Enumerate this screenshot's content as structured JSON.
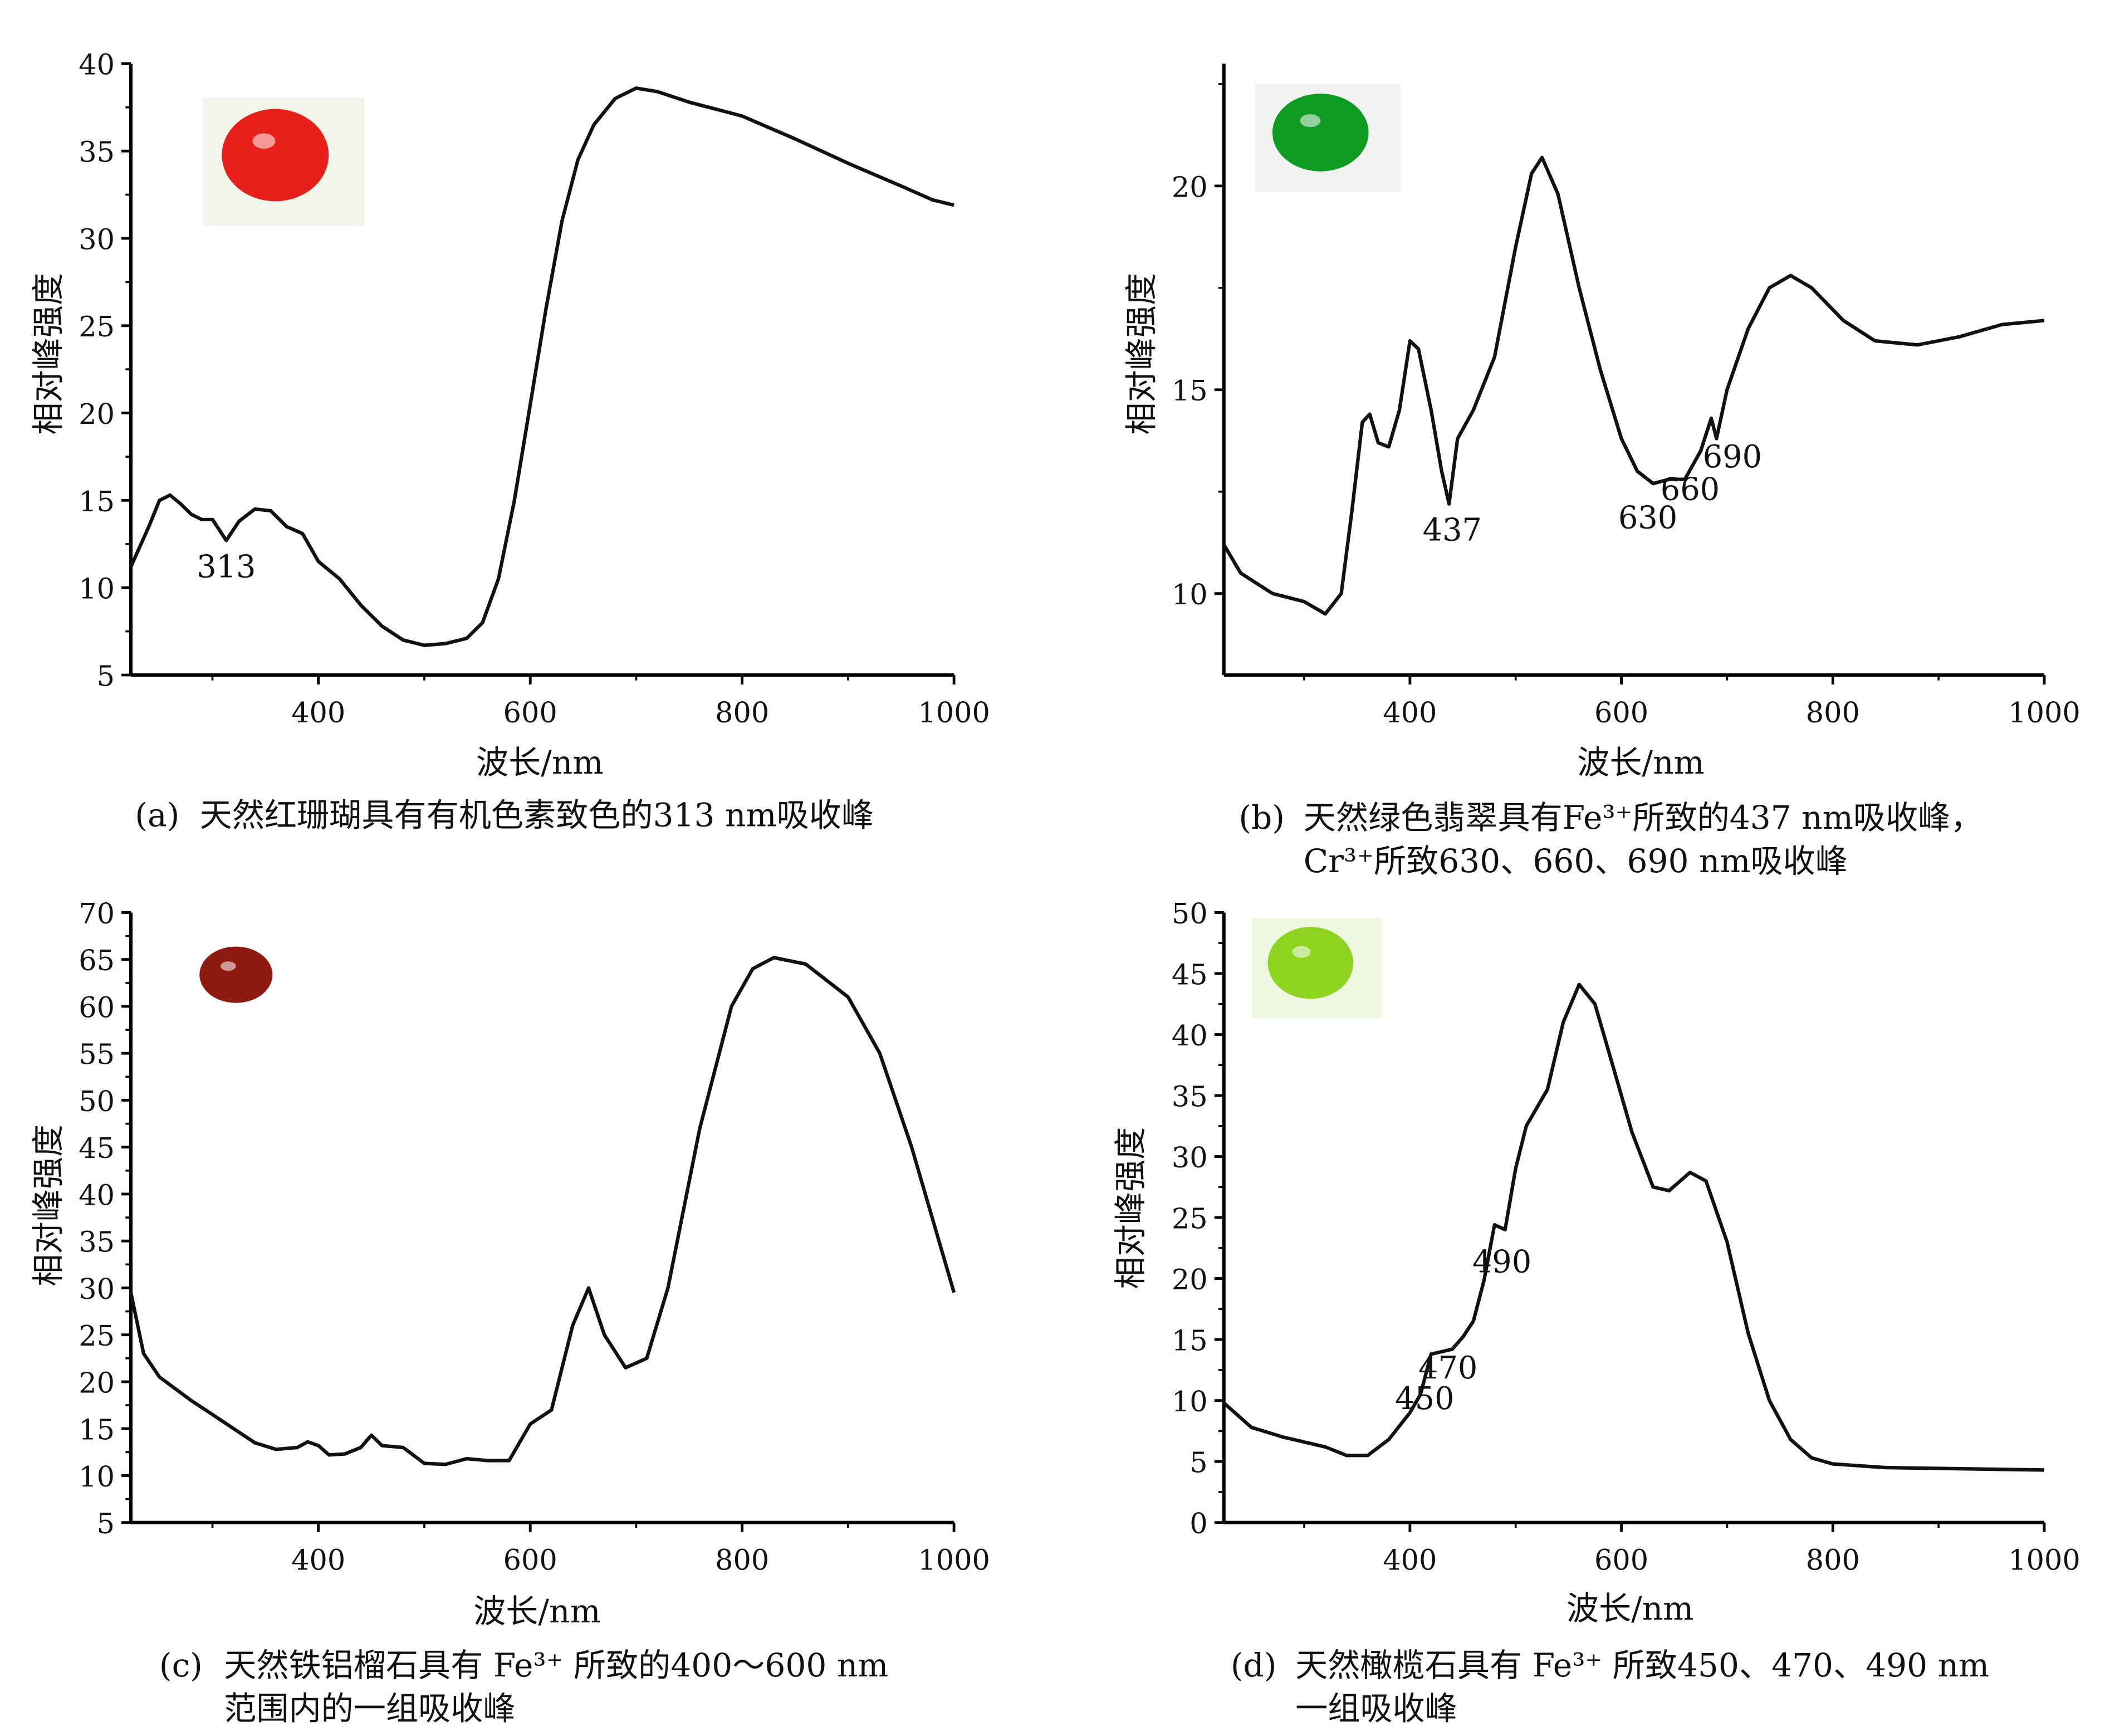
{
  "chart_data": [
    {
      "id": "a",
      "type": "line",
      "xlabel": "波长/nm",
      "ylabel": "相对峰强度",
      "xlim": [
        223,
        1000
      ],
      "ylim": [
        5,
        40
      ],
      "xticks": [
        400,
        600,
        800,
        1000
      ],
      "yticks": [
        5,
        10,
        15,
        20,
        25,
        30,
        35,
        40
      ],
      "gem_color": "#e8201c",
      "gem_bg": "#f2f5ea",
      "caption_label": "(a)",
      "caption_lines": [
        "天然红珊瑚具有有机色素致色的313 nm吸收峰"
      ],
      "annotations": [
        {
          "text": "313",
          "x": 313,
          "y": 10.6
        }
      ],
      "x": [
        223,
        240,
        250,
        260,
        270,
        280,
        290,
        300,
        313,
        325,
        340,
        355,
        370,
        385,
        400,
        420,
        440,
        460,
        480,
        500,
        520,
        540,
        555,
        570,
        585,
        600,
        615,
        630,
        645,
        660,
        680,
        700,
        720,
        750,
        800,
        850,
        900,
        950,
        980,
        1000
      ],
      "y": [
        11.2,
        13.5,
        15.0,
        15.3,
        14.8,
        14.2,
        13.9,
        13.9,
        12.7,
        13.8,
        14.5,
        14.4,
        13.5,
        13.1,
        11.5,
        10.5,
        9.0,
        7.8,
        7.0,
        6.7,
        6.8,
        7.1,
        8.0,
        10.5,
        15.0,
        20.5,
        26.0,
        31.0,
        34.5,
        36.5,
        38.0,
        38.6,
        38.4,
        37.8,
        37.0,
        35.7,
        34.3,
        33.0,
        32.2,
        31.9
      ]
    },
    {
      "id": "b",
      "type": "line",
      "xlabel": "波长/nm",
      "ylabel": "相对峰强度",
      "xlim": [
        224,
        1000
      ],
      "ylim": [
        8,
        23
      ],
      "xticks": [
        400,
        600,
        800,
        1000
      ],
      "yticks": [
        10,
        15,
        20
      ],
      "gem_color": "#0f9a22",
      "gem_bg": "#f1f3f0",
      "caption_label": "(b)",
      "caption_lines": [
        "天然绿色翡翠具有Fe³⁺所致的437 nm吸收峰，",
        "Cr³⁺所致630、660、690 nm吸收峰"
      ],
      "annotations": [
        {
          "text": "437",
          "x": 440,
          "y": 11.3
        },
        {
          "text": "630",
          "x": 625,
          "y": 11.6
        },
        {
          "text": "660",
          "x": 665,
          "y": 12.3
        },
        {
          "text": "690",
          "x": 705,
          "y": 13.1
        }
      ],
      "x": [
        224,
        240,
        270,
        300,
        320,
        335,
        345,
        355,
        362,
        370,
        380,
        390,
        400,
        408,
        420,
        430,
        437,
        445,
        460,
        480,
        500,
        515,
        525,
        540,
        560,
        580,
        600,
        615,
        630,
        645,
        660,
        675,
        685,
        690,
        700,
        720,
        740,
        760,
        780,
        810,
        840,
        880,
        920,
        960,
        1000
      ],
      "y": [
        11.2,
        10.5,
        10.0,
        9.8,
        9.5,
        10.0,
        12.0,
        14.2,
        14.4,
        13.7,
        13.6,
        14.5,
        16.2,
        16.0,
        14.5,
        13.0,
        12.2,
        13.8,
        14.5,
        15.8,
        18.5,
        20.3,
        20.7,
        19.8,
        17.5,
        15.5,
        13.8,
        13.0,
        12.7,
        12.8,
        12.8,
        13.5,
        14.3,
        13.8,
        15.0,
        16.5,
        17.5,
        17.8,
        17.5,
        16.7,
        16.2,
        16.1,
        16.3,
        16.6,
        16.7
      ]
    },
    {
      "id": "c",
      "type": "line",
      "xlabel": "波长/nm",
      "ylabel": "相对峰强度",
      "xlim": [
        223,
        1000
      ],
      "ylim": [
        5,
        70
      ],
      "xticks": [
        400,
        600,
        800,
        1000
      ],
      "yticks": [
        5,
        10,
        15,
        20,
        25,
        30,
        35,
        40,
        45,
        50,
        55,
        60,
        65,
        70
      ],
      "gem_color": "#8e1a12",
      "gem_bg": "#ffffff",
      "caption_label": "(c)",
      "caption_lines": [
        "天然铁铝榴石具有 Fe³⁺ 所致的400～600 nm",
        "范围内的一组吸收峰"
      ],
      "annotations": [],
      "x": [
        223,
        235,
        250,
        280,
        300,
        320,
        340,
        360,
        380,
        390,
        400,
        410,
        425,
        440,
        450,
        460,
        480,
        500,
        520,
        540,
        560,
        580,
        600,
        620,
        640,
        655,
        670,
        690,
        710,
        730,
        760,
        790,
        810,
        830,
        860,
        900,
        930,
        960,
        1000
      ],
      "y": [
        29.5,
        23,
        20.5,
        18,
        16.5,
        15,
        13.5,
        12.8,
        13,
        13.6,
        13.2,
        12.2,
        12.3,
        13,
        14.3,
        13.2,
        13,
        11.3,
        11.2,
        11.8,
        11.6,
        11.6,
        15.5,
        17,
        26,
        30,
        25,
        21.5,
        22.5,
        30,
        47,
        60,
        64,
        65.2,
        64.5,
        61,
        55,
        45,
        29.5
      ]
    },
    {
      "id": "d",
      "type": "line",
      "xlabel": "波长/nm",
      "ylabel": "相对峰强度",
      "xlim": [
        224,
        1000
      ],
      "ylim": [
        0,
        50
      ],
      "xticks": [
        400,
        600,
        800,
        1000
      ],
      "yticks": [
        0,
        5,
        10,
        15,
        20,
        25,
        30,
        35,
        40,
        45,
        50
      ],
      "gem_color": "#8fd321",
      "gem_bg": "#eef7e0",
      "caption_label": "(d)",
      "caption_lines": [
        "天然橄榄石具有 Fe³⁺ 所致450、470、490 nm",
        "一组吸收峰"
      ],
      "annotations": [
        {
          "text": "450",
          "x": 414,
          "y": 9.3
        },
        {
          "text": "470",
          "x": 436,
          "y": 11.8
        },
        {
          "text": "490",
          "x": 487,
          "y": 20.5
        }
      ],
      "x": [
        224,
        250,
        280,
        320,
        340,
        360,
        380,
        400,
        410,
        420,
        430,
        440,
        450,
        460,
        470,
        480,
        490,
        500,
        510,
        530,
        545,
        560,
        575,
        590,
        610,
        630,
        645,
        665,
        680,
        700,
        720,
        740,
        760,
        780,
        800,
        850,
        1000
      ],
      "y": [
        9.8,
        7.8,
        7,
        6.2,
        5.5,
        5.5,
        6.8,
        9,
        10.5,
        13.8,
        14.0,
        14.2,
        15.2,
        16.5,
        19.8,
        24.4,
        24,
        29,
        32.5,
        35.5,
        41,
        44.1,
        42.5,
        38,
        32,
        27.5,
        27.2,
        28.7,
        28,
        23,
        15.5,
        10,
        6.8,
        5.3,
        4.8,
        4.5,
        4.3
      ]
    }
  ]
}
